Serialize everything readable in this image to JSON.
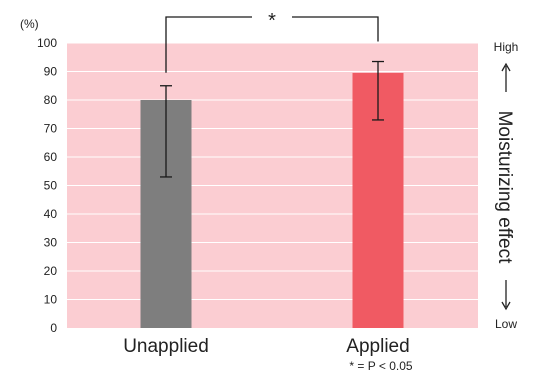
{
  "chart_data": {
    "type": "bar",
    "categories": [
      "Unapplied",
      "Applied"
    ],
    "values": [
      80,
      89.5
    ],
    "error_bars": [
      {
        "low": 53,
        "high": 85
      },
      {
        "low": 73,
        "high": 93.5
      }
    ],
    "ylabel": "(%)",
    "ylim": [
      0,
      100
    ],
    "yticks": [
      0,
      10,
      20,
      30,
      40,
      50,
      60,
      70,
      80,
      90,
      100
    ],
    "grid": true,
    "right_axis": {
      "top_label": "High",
      "bottom_label": "Low",
      "title": "Moisturizing effect"
    },
    "significance": {
      "marker": "*",
      "footnote": "* = P < 0.05"
    },
    "colors": {
      "plot_background": "#fbcdd2",
      "gridline": "#ffffff",
      "unapplied_bar": "#7e7e7e",
      "applied_bar": "#f05a63",
      "error_bar": "#1a1a1a",
      "text": "#222222"
    }
  }
}
